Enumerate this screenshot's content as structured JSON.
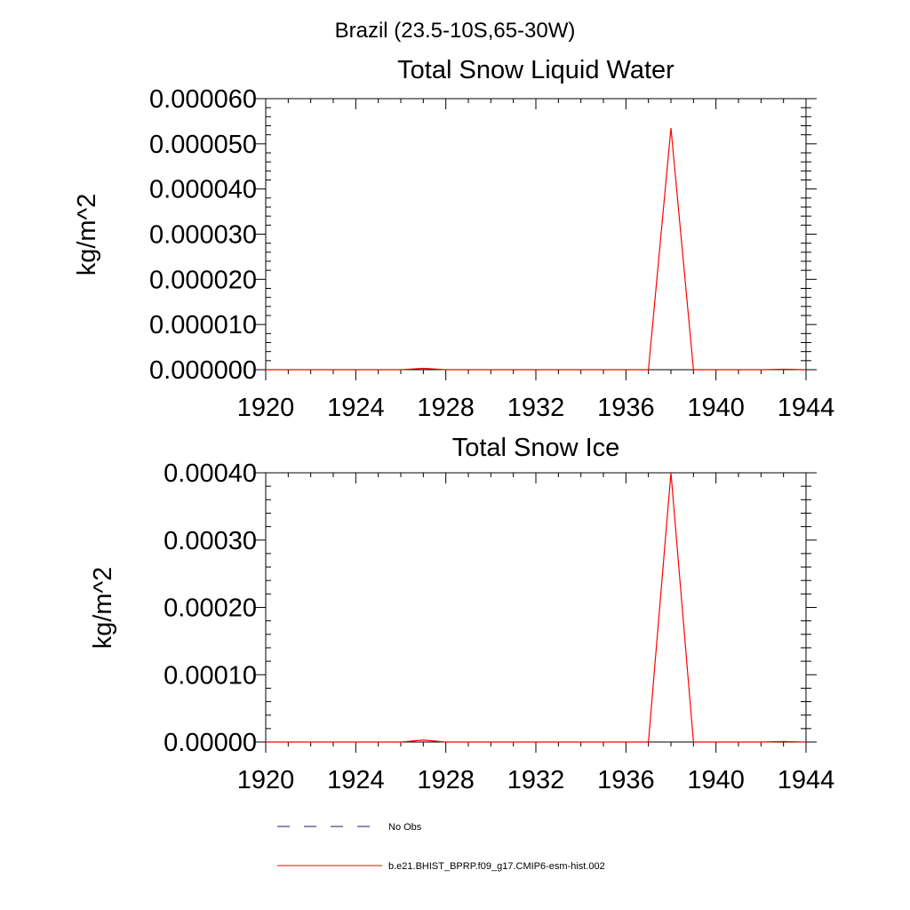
{
  "figure_title": "Brazil (23.5-10S,65-30W)",
  "chart_data": [
    {
      "type": "line",
      "title": "Total Snow Liquid Water",
      "xlabel": "",
      "ylabel": "kg/m^2",
      "xlim": [
        1920,
        1944
      ],
      "ylim": [
        0,
        6e-05
      ],
      "x_ticks": [
        "1920",
        "1924",
        "1928",
        "1932",
        "1936",
        "1940",
        "1944"
      ],
      "y_ticks": [
        "0.000000",
        "0.000010",
        "0.000020",
        "0.000030",
        "0.000040",
        "0.000050",
        "0.000060"
      ],
      "grid": false,
      "series": [
        {
          "name": "b.e21.BHIST_BPRP.f09_g17.CMIP6-esm-hist.002",
          "color": "#ff0000",
          "x": [
            1920,
            1921,
            1922,
            1923,
            1924,
            1925,
            1926,
            1927,
            1928,
            1929,
            1930,
            1931,
            1932,
            1933,
            1934,
            1935,
            1936,
            1937,
            1938,
            1939,
            1940,
            1941,
            1942,
            1943,
            1944
          ],
          "y": [
            0,
            0,
            0,
            0,
            0,
            0,
            0,
            3e-07,
            0,
            0,
            0,
            0,
            0,
            0,
            0,
            0,
            0,
            0,
            5.35e-05,
            0,
            0,
            0,
            0,
            1e-07,
            0
          ]
        }
      ]
    },
    {
      "type": "line",
      "title": "Total Snow Ice",
      "xlabel": "",
      "ylabel": "kg/m^2",
      "xlim": [
        1920,
        1944
      ],
      "ylim": [
        0,
        0.0004
      ],
      "x_ticks": [
        "1920",
        "1924",
        "1928",
        "1932",
        "1936",
        "1940",
        "1944"
      ],
      "y_ticks": [
        "0.00000",
        "0.00010",
        "0.00020",
        "0.00030",
        "0.00040"
      ],
      "grid": false,
      "series": [
        {
          "name": "b.e21.BHIST_BPRP.f09_g17.CMIP6-esm-hist.002",
          "color": "#ff0000",
          "x": [
            1920,
            1921,
            1922,
            1923,
            1924,
            1925,
            1926,
            1927,
            1928,
            1929,
            1930,
            1931,
            1932,
            1933,
            1934,
            1935,
            1936,
            1937,
            1938,
            1939,
            1940,
            1941,
            1942,
            1943,
            1944
          ],
          "y": [
            0,
            0,
            0,
            0,
            0,
            0,
            0,
            3e-06,
            0,
            0,
            0,
            0,
            0,
            0,
            0,
            0,
            0,
            0,
            0.0004,
            0,
            0,
            0,
            0,
            8e-07,
            0
          ]
        }
      ]
    }
  ],
  "legend": {
    "placement": "bottom",
    "items": [
      {
        "label": "No Obs",
        "color": "#1a1a6e",
        "style": "dashed"
      },
      {
        "label": "b.e21.BHIST_BPRP.f09_g17.CMIP6-esm-hist.002",
        "color": "#ff0000",
        "style": "solid"
      }
    ]
  }
}
